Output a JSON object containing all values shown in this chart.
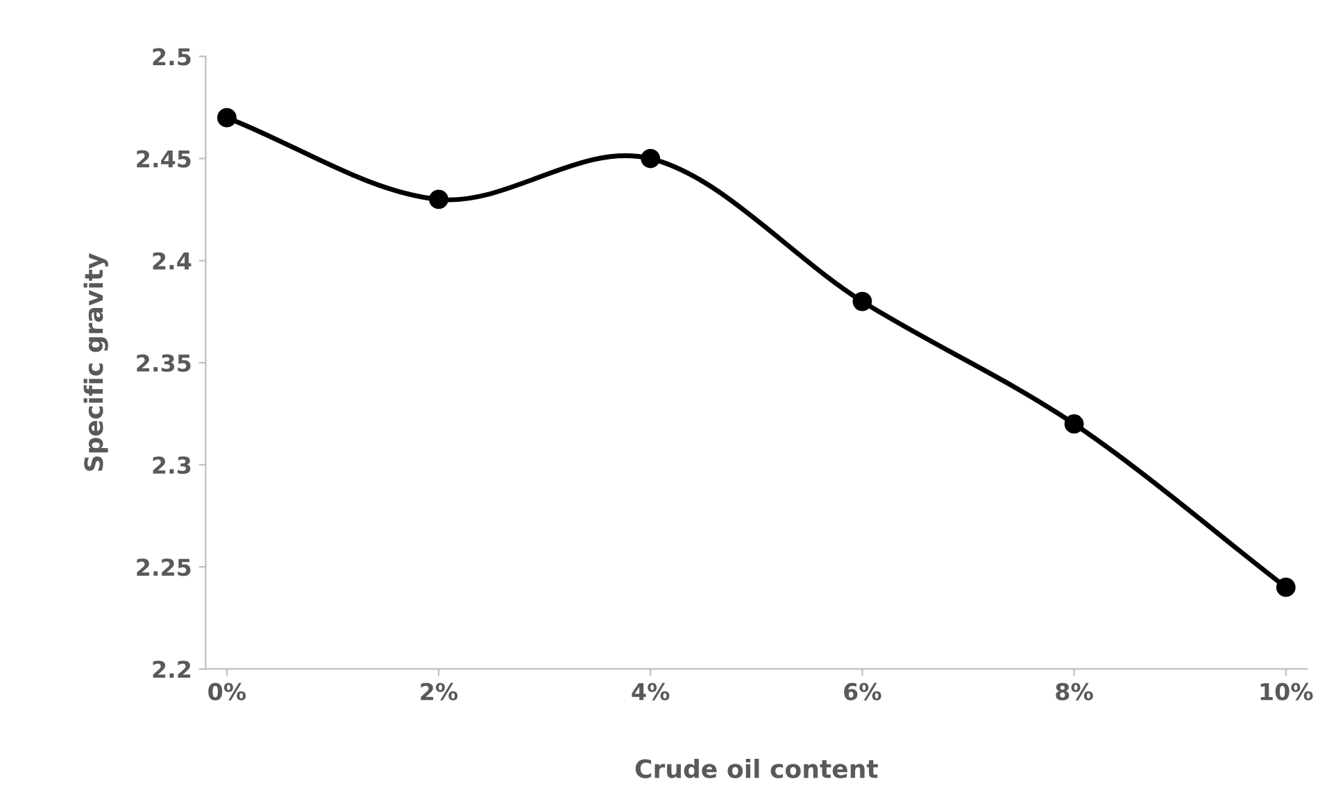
{
  "chart_data": {
    "type": "line",
    "xlabel": "Crude oil content",
    "ylabel": "Specific gravity",
    "categories": [
      "0%",
      "2%",
      "4%",
      "6%",
      "8%",
      "10%"
    ],
    "series": [
      {
        "color": "#000000",
        "values": [
          2.47,
          2.43,
          2.45,
          2.38,
          2.32,
          2.24
        ]
      }
    ],
    "ylim": [
      2.2,
      2.5
    ],
    "yticks": [
      2.2,
      2.25,
      2.3,
      2.35,
      2.4,
      2.45,
      2.5
    ],
    "grid": false,
    "legend": false,
    "marker": "circle",
    "line_style": "solid"
  }
}
